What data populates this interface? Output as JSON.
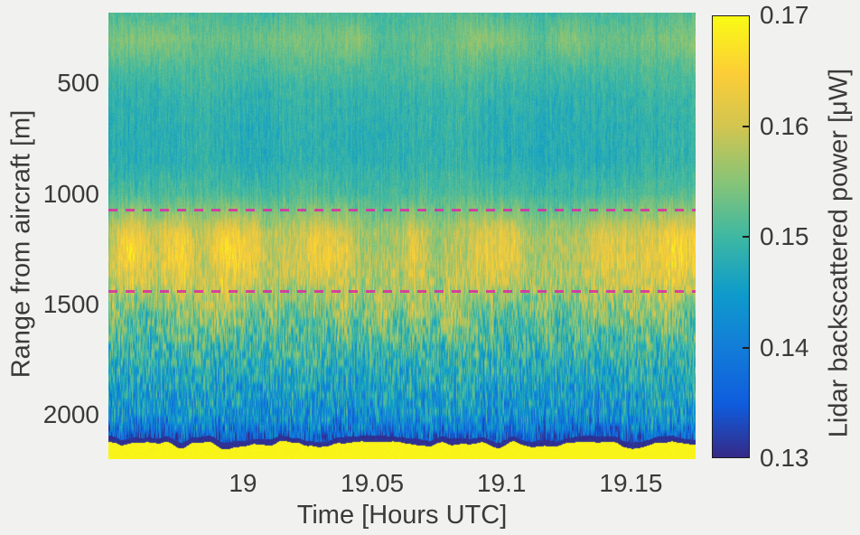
{
  "figure": {
    "background_color": "#f1f1ef",
    "text_color": "#3a3a3a"
  },
  "chart_data": {
    "type": "heatmap",
    "title": "",
    "xlabel": "Time [Hours UTC]",
    "ylabel": "Range from aircraft [m]",
    "x_range": [
      18.948,
      19.175
    ],
    "x_ticks": [
      {
        "value": 19,
        "label": "19"
      },
      {
        "value": 19.05,
        "label": "19.05"
      },
      {
        "value": 19.1,
        "label": "19.1"
      },
      {
        "value": 19.15,
        "label": "19.15"
      }
    ],
    "y_range": [
      180,
      2200
    ],
    "y_axis_direction": "reversed, range increases downward",
    "y_ticks": [
      {
        "value": 500,
        "label": "500"
      },
      {
        "value": 1000,
        "label": "1000"
      },
      {
        "value": 1500,
        "label": "1500"
      },
      {
        "value": 2000,
        "label": "2000"
      }
    ],
    "colorbar": {
      "label": "Lidar backscattered power [μW]",
      "range": [
        0.13,
        0.17
      ],
      "ticks": [
        {
          "value": 0.17,
          "label": "0.17"
        },
        {
          "value": 0.16,
          "label": "0.16"
        },
        {
          "value": 0.15,
          "label": "0.15"
        },
        {
          "value": 0.14,
          "label": "0.14"
        },
        {
          "value": 0.13,
          "label": "0.13"
        }
      ],
      "colormap": "parula",
      "colormap_stops": [
        {
          "pos": 0.0,
          "color": "#352a87"
        },
        {
          "pos": 0.12,
          "color": "#0f5cdd"
        },
        {
          "pos": 0.25,
          "color": "#127dd8"
        },
        {
          "pos": 0.37,
          "color": "#0e9bcb"
        },
        {
          "pos": 0.5,
          "color": "#3eb8a2"
        },
        {
          "pos": 0.62,
          "color": "#85c478"
        },
        {
          "pos": 0.75,
          "color": "#d2c550"
        },
        {
          "pos": 0.87,
          "color": "#fccd37"
        },
        {
          "pos": 1.0,
          "color": "#f9fb14"
        }
      ]
    },
    "annotations": {
      "dashed_lines": [
        {
          "range_m": 1075,
          "color": "#db2aa6",
          "style": "dashed"
        },
        {
          "range_m": 1440,
          "color": "#db2aa6",
          "style": "dashed"
        }
      ]
    },
    "mean_profile": {
      "note": "approximate mean backscattered power vs range, estimated from the image colors",
      "range_m": [
        180,
        300,
        420,
        560,
        700,
        850,
        1000,
        1090,
        1180,
        1300,
        1400,
        1500,
        1620,
        1750,
        1900,
        2030,
        2120
      ],
      "power_uW": [
        0.1505,
        0.1525,
        0.151,
        0.149,
        0.1482,
        0.1482,
        0.1505,
        0.1545,
        0.159,
        0.1598,
        0.1585,
        0.1555,
        0.152,
        0.1485,
        0.1452,
        0.1428,
        0.1408
      ]
    },
    "surface_return": {
      "range_m": 2130,
      "line_power_uW": 0.131,
      "below_power_uW": 0.17
    }
  }
}
